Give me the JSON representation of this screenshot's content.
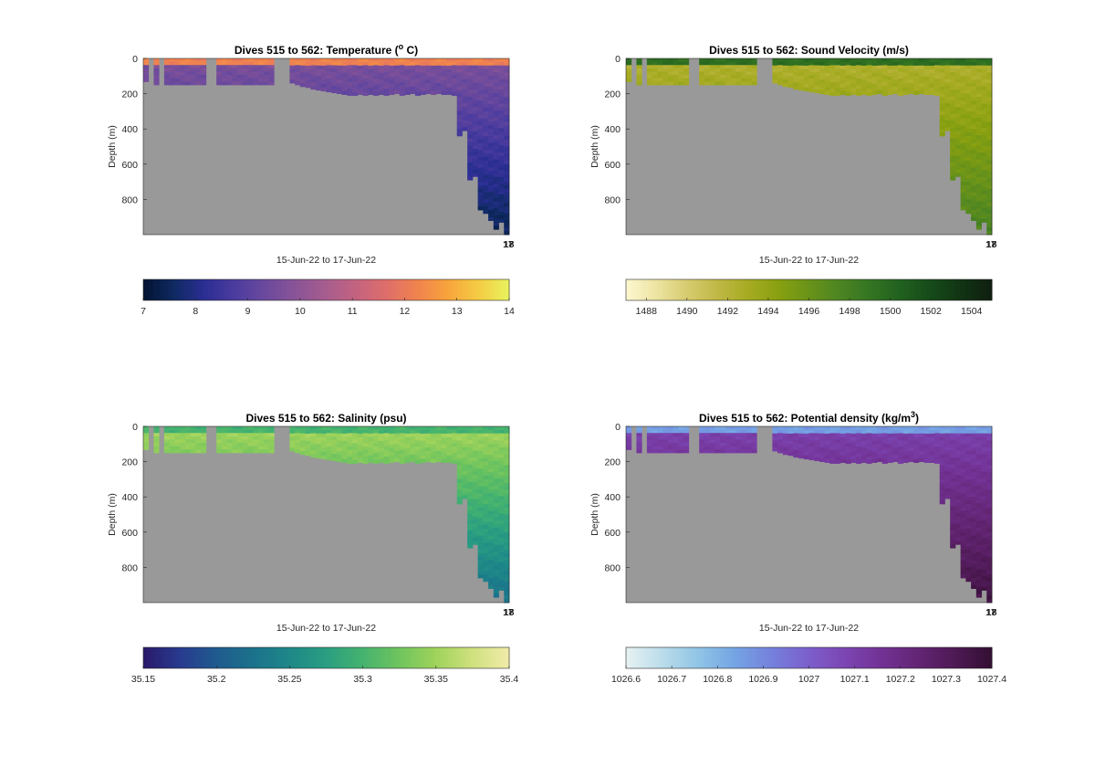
{
  "figure": {
    "background": "#ffffff",
    "panel_background": "#999999",
    "xlabel_date_range": "15-Jun-22 to 17-Jun-22"
  },
  "chart_data": [
    {
      "type": "heatmap",
      "title_prefix": "Dives 515 to 562: Temperature (",
      "title_sup": "o",
      "title_suffix": " C)",
      "ylabel": "Depth (m)",
      "xlabel": "15-Jun-22 to 17-Jun-22",
      "y_reversed": true,
      "ylim": [
        0,
        1000
      ],
      "yticks": [
        0,
        200,
        400,
        600,
        800
      ],
      "xtick_labels": [
        "17",
        "18"
      ],
      "colorbar": {
        "range": [
          7,
          14
        ],
        "ticks": [
          "7",
          "8",
          "9",
          "10",
          "11",
          "12",
          "13",
          "14"
        ],
        "colors": [
          "#041432",
          "#0f2a63",
          "#2b2e93",
          "#4c3c9f",
          "#6b4a9d",
          "#8a5497",
          "#a75d8e",
          "#c46380",
          "#df6e6a",
          "#f0834e",
          "#f8a43c",
          "#f4cb44",
          "#e9f25d"
        ]
      },
      "upper_layer": {
        "depth_m": 40,
        "value": 12.2
      },
      "lower_layer_value": 9.6,
      "deep_value": 7.5
    },
    {
      "type": "heatmap",
      "title_prefix": "Dives 515 to 562: Sound Velocity (m/s)",
      "title_sup": "",
      "title_suffix": "",
      "ylabel": "Depth (m)",
      "xlabel": "15-Jun-22 to 17-Jun-22",
      "y_reversed": true,
      "ylim": [
        0,
        1000
      ],
      "yticks": [
        0,
        200,
        400,
        600,
        800
      ],
      "xtick_labels": [
        "17",
        "18"
      ],
      "colorbar": {
        "range": [
          1487,
          1505
        ],
        "ticks": [
          "1488",
          "1490",
          "1492",
          "1494",
          "1496",
          "1498",
          "1500",
          "1502",
          "1504"
        ],
        "tick_values": [
          1488,
          1490,
          1492,
          1494,
          1496,
          1498,
          1500,
          1502,
          1504
        ],
        "colors": [
          "#fdf7d0",
          "#ece3a0",
          "#d6cb6e",
          "#bfb845",
          "#a6ab22",
          "#88a010",
          "#6a9319",
          "#4d8522",
          "#347523",
          "#21611f",
          "#164b1a",
          "#123414",
          "#0f1f10"
        ]
      },
      "upper_layer": {
        "depth_m": 40,
        "value": 1499.5
      },
      "lower_layer_value": 1492.5,
      "deep_value": 1497.5
    },
    {
      "type": "heatmap",
      "title_prefix": "Dives 515 to 562: Salinity (psu)",
      "title_sup": "",
      "title_suffix": "",
      "ylabel": "Depth (m)",
      "xlabel": "15-Jun-22 to 17-Jun-22",
      "y_reversed": true,
      "ylim": [
        0,
        1000
      ],
      "yticks": [
        0,
        200,
        400,
        600,
        800
      ],
      "xtick_labels": [
        "17",
        "18"
      ],
      "colorbar": {
        "range": [
          35.15,
          35.4
        ],
        "ticks": [
          "35.15",
          "35.2",
          "35.25",
          "35.3",
          "35.35",
          "35.4"
        ],
        "colors": [
          "#2a1a6b",
          "#283b8f",
          "#1f5b8e",
          "#1b728b",
          "#1e8888",
          "#2a9e81",
          "#45b36f",
          "#6fc45e",
          "#9fd35b",
          "#cfe07e",
          "#f0eba8"
        ]
      },
      "upper_layer": {
        "depth_m": 40,
        "value": 35.3
      },
      "lower_layer_value": 35.35,
      "deep_value": 35.23
    },
    {
      "type": "heatmap",
      "title_prefix": "Dives 515 to 562: Potential density (kg/m",
      "title_sup": "3",
      "title_suffix": ")",
      "ylabel": "Depth (m)",
      "xlabel": "15-Jun-22 to 17-Jun-22",
      "y_reversed": true,
      "ylim": [
        0,
        1000
      ],
      "yticks": [
        0,
        200,
        400,
        600,
        800
      ],
      "xtick_labels": [
        "17",
        "18"
      ],
      "colorbar": {
        "range": [
          1026.6,
          1027.4
        ],
        "ticks": [
          "1026.6",
          "1026.7",
          "1026.8",
          "1026.9",
          "1027",
          "1027.1",
          "1027.2",
          "1027.3",
          "1027.4"
        ],
        "colors": [
          "#e6f1f2",
          "#b9dcea",
          "#8fc3e6",
          "#74a3e3",
          "#7580dc",
          "#7c5fcb",
          "#7c45b2",
          "#723294",
          "#632574",
          "#4f1a55",
          "#330f33"
        ]
      },
      "upper_layer": {
        "depth_m": 40,
        "value": 1026.85
      },
      "lower_layer_value": 1027.1,
      "deep_value": 1027.35
    }
  ],
  "profile_depths": [
    132,
    0,
    150,
    0,
    150,
    150,
    150,
    150,
    150,
    150,
    150,
    150,
    0,
    0,
    150,
    150,
    150,
    150,
    150,
    150,
    150,
    150,
    150,
    150,
    150,
    0,
    0,
    0,
    140,
    150,
    160,
    165,
    175,
    180,
    185,
    190,
    195,
    200,
    205,
    210,
    210,
    205,
    210,
    205,
    210,
    205,
    210,
    205,
    200,
    210,
    205,
    200,
    210,
    205,
    200,
    205,
    200,
    205,
    205,
    210,
    440,
    410,
    690,
    670,
    860,
    880,
    920,
    970,
    930,
    1000
  ]
}
